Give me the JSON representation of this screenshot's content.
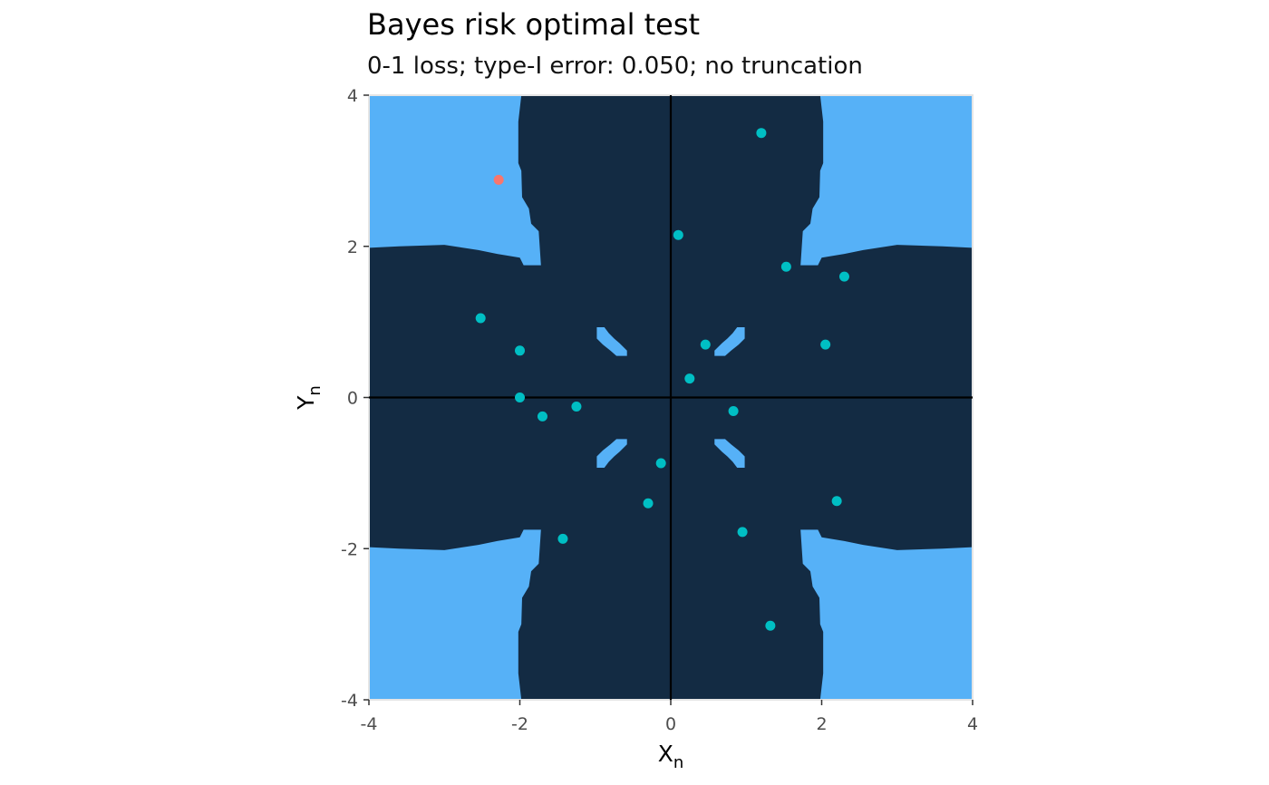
{
  "title": "Bayes risk optimal test",
  "subtitle": "0-1 loss; type-I error: 0.050; no truncation",
  "colors": {
    "reject_region": "#56B1F7",
    "accept_region": "#132B43",
    "point_main": "#00BFC4",
    "point_highlight": "#F8766D",
    "axis_line": "#000000",
    "panel_border": "#e5e5e5"
  },
  "chart_data": {
    "type": "heatmap",
    "title": "Bayes risk optimal test",
    "subtitle": "0-1 loss; type-I error: 0.050; no truncation",
    "xlabel": "X",
    "xlabel_sub": "n",
    "ylabel": "Y",
    "ylabel_sub": "n",
    "xlim": [
      -4,
      4
    ],
    "ylim": [
      -4,
      4
    ],
    "xticks": [
      -4,
      -2,
      0,
      2,
      4
    ],
    "yticks": [
      -4,
      -2,
      0,
      2,
      4
    ],
    "xtick_labels": [
      "-4",
      "-2",
      "0",
      "2",
      "4"
    ],
    "ytick_labels": [
      "-4",
      "-2",
      "0",
      "2",
      "4"
    ],
    "grid": false,
    "reference_lines": {
      "x": 0,
      "y": 0
    },
    "regions": {
      "reject_corners": [
        {
          "corner": "top-left",
          "edge_x": [
            [
              2.0,
              -2.05
            ],
            [
              2.7,
              -2.05
            ],
            [
              2.9,
              -1.95
            ],
            [
              3.6,
              -2.05
            ],
            [
              4.0,
              -2.05
            ]
          ],
          "edge_y": [
            [
              -4,
              1.95
            ],
            [
              -3.0,
              2.0
            ],
            [
              -2.55,
              1.85
            ],
            [
              -2.0,
              1.75
            ],
            [
              -1.75,
              1.72
            ]
          ]
        },
        {
          "corner": "top-right"
        },
        {
          "corner": "bottom-left"
        },
        {
          "corner": "bottom-right"
        }
      ],
      "reject_islands": [
        {
          "center": [
            -0.75,
            0.75
          ]
        },
        {
          "center": [
            0.75,
            0.75
          ]
        },
        {
          "center": [
            -0.75,
            -0.75
          ]
        },
        {
          "center": [
            0.75,
            -0.75
          ]
        }
      ]
    },
    "series": [
      {
        "group": "main",
        "points": [
          [
            1.2,
            3.5
          ],
          [
            0.1,
            2.15
          ],
          [
            1.53,
            1.73
          ],
          [
            2.3,
            1.6
          ],
          [
            -2.52,
            1.05
          ],
          [
            -2.0,
            0.62
          ],
          [
            0.46,
            0.7
          ],
          [
            2.05,
            0.7
          ],
          [
            0.25,
            0.25
          ],
          [
            -2.0,
            0.0
          ],
          [
            -1.7,
            -0.25
          ],
          [
            -1.25,
            -0.12
          ],
          [
            0.83,
            -0.18
          ],
          [
            -0.13,
            -0.87
          ],
          [
            -0.3,
            -1.4
          ],
          [
            2.2,
            -1.37
          ],
          [
            0.95,
            -1.78
          ],
          [
            -1.43,
            -1.87
          ],
          [
            1.32,
            -3.02
          ]
        ]
      },
      {
        "group": "highlight",
        "points": [
          [
            -2.28,
            2.88
          ]
        ]
      }
    ]
  }
}
